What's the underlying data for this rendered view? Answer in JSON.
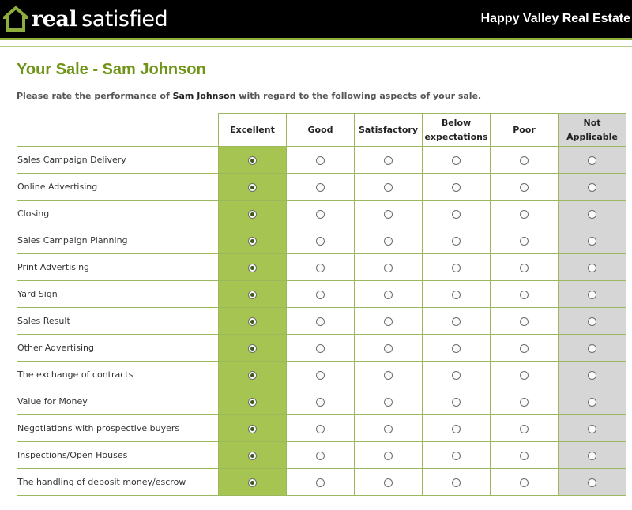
{
  "brand": {
    "logo_bold": "real",
    "logo_light": "satisfied",
    "company": "Happy Valley Real Estate"
  },
  "page": {
    "title": "Your Sale - Sam Johnson",
    "intro_prefix": "Please rate the performance of ",
    "agent_name": "Sam Johnson",
    "intro_suffix": " with regard to the following aspects of your sale."
  },
  "columns": [
    "Excellent",
    "Good",
    "Satisfactory",
    "Below expectations",
    "Poor",
    "Not Applicable"
  ],
  "rows": [
    {
      "label": "Sales Campaign Delivery",
      "selected": 0
    },
    {
      "label": "Online Advertising",
      "selected": 0
    },
    {
      "label": "Closing",
      "selected": 0
    },
    {
      "label": "Sales Campaign Planning",
      "selected": 0
    },
    {
      "label": "Print Advertising",
      "selected": 0
    },
    {
      "label": "Yard Sign",
      "selected": 0
    },
    {
      "label": "Sales Result",
      "selected": 0
    },
    {
      "label": "Other Advertising",
      "selected": 0
    },
    {
      "label": "The exchange of contracts",
      "selected": 0
    },
    {
      "label": "Value for Money",
      "selected": 0
    },
    {
      "label": "Negotiations with prospective buyers",
      "selected": 0
    },
    {
      "label": "Inspections/Open Houses",
      "selected": 0
    },
    {
      "label": "The handling of deposit money/escrow",
      "selected": 0
    }
  ],
  "colors": {
    "accent": "#6f9418",
    "selected_column": "#a6c451",
    "na_column": "#d6d6d6"
  }
}
